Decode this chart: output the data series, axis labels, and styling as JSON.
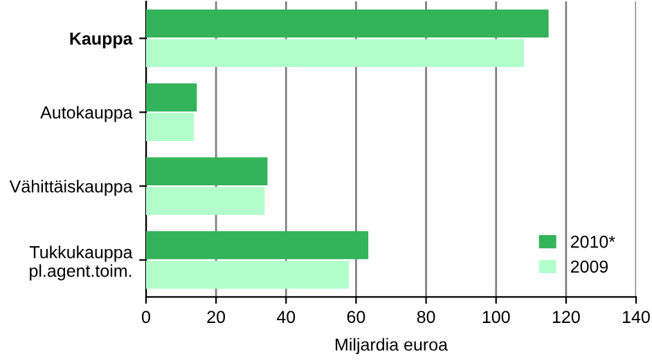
{
  "chart_data": {
    "type": "bar",
    "orientation": "horizontal",
    "xlabel": "Miljardia euroa",
    "categories": [
      "Kauppa",
      "Autokauppa",
      "Vähittäiskauppa",
      "Tukkukauppa\npl.agent.toim."
    ],
    "series": [
      {
        "name": "2010*",
        "color": "#33b35a",
        "values": [
          115,
          14.5,
          34.7,
          63.5
        ]
      },
      {
        "name": "2009",
        "color": "#b3ffcc",
        "values": [
          108,
          13.7,
          33.9,
          58
        ]
      }
    ],
    "xlim": [
      0,
      140
    ],
    "xticks": [
      0,
      20,
      40,
      60,
      80,
      100,
      120,
      140
    ],
    "grid": "x",
    "legend": "bottom right"
  }
}
